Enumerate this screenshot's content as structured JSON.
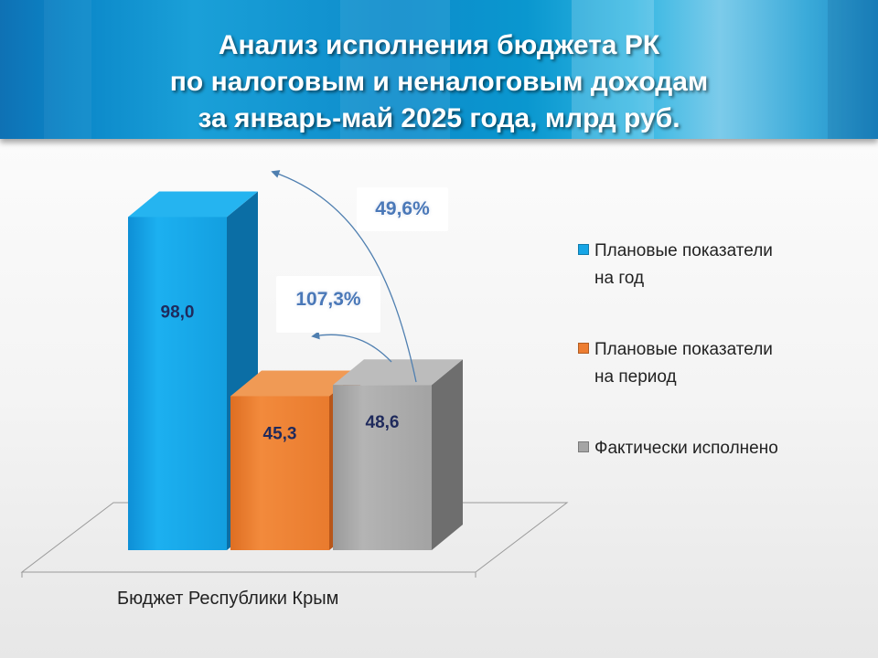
{
  "title": {
    "line1": "Анализ исполнения бюджета РК",
    "line2": "по налоговым и неналоговым доходам",
    "line3": "за январь-май 2025 года, млрд руб."
  },
  "colors": {
    "plan_year": "#16a5e6",
    "plan_period": "#ed7d31",
    "actual": "#a5a5a5",
    "value_label": "#1f2a5c",
    "callout_text": "#4a78b8",
    "arrow": "#4f7fb0"
  },
  "chart_data": {
    "type": "bar",
    "categories": [
      "Бюджет Республики Крым"
    ],
    "series": [
      {
        "name": "Плановые показатели на год",
        "values": [
          98.0
        ],
        "label": "98,0"
      },
      {
        "name": "Плановые показатели на период",
        "values": [
          45.3
        ],
        "label": "45,3"
      },
      {
        "name": "Фактически исполнено",
        "values": [
          48.6
        ],
        "label": "48,6"
      }
    ],
    "annotations": [
      {
        "text": "49,6%",
        "from": "Фактически исполнено",
        "to": "Плановые показатели на год"
      },
      {
        "text": "107,3%",
        "from": "Фактически исполнено",
        "to": "Плановые показатели на период"
      }
    ],
    "ylim": [
      0,
      100
    ],
    "grid": false,
    "legend": "right"
  },
  "legend": {
    "items": [
      {
        "line1": "Плановые показатели",
        "line2": "на год"
      },
      {
        "line1": "Плановые показатели",
        "line2": "на период"
      },
      {
        "line1": "Фактически исполнено",
        "line2": ""
      }
    ]
  },
  "callouts": {
    "annual": "49,6%",
    "period": "107,3%"
  }
}
